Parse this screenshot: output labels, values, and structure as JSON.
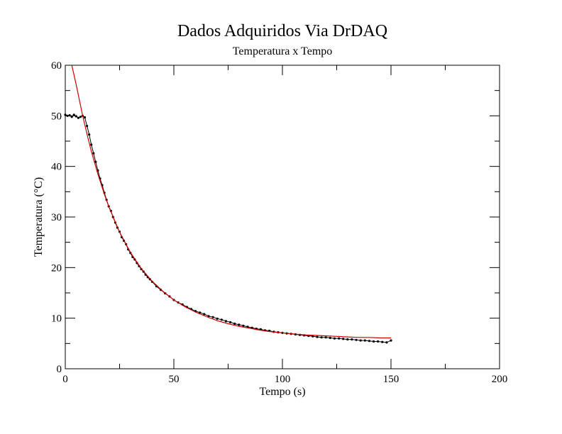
{
  "chart_data": {
    "type": "scatter",
    "title": "Dados Adquiridos Via DrDAQ",
    "subtitle": "Temperatura x Tempo",
    "xlabel": "Tempo (s)",
    "ylabel": "Temperatura (°C)",
    "xlim": [
      0,
      200
    ],
    "ylim": [
      0,
      60
    ],
    "x_ticks": [
      0,
      50,
      100,
      150,
      200
    ],
    "y_ticks": [
      0,
      10,
      20,
      30,
      40,
      50,
      60
    ],
    "x_tick_labels": [
      "0",
      "50",
      "100",
      "150",
      "200"
    ],
    "y_tick_labels": [
      "0",
      "10",
      "20",
      "30",
      "40",
      "50",
      "60"
    ],
    "grid": false,
    "legend": "none",
    "series": [
      {
        "kind": "measured",
        "color": "#000000",
        "marker": "dot-with-line",
        "x": [
          0,
          1,
          2,
          3,
          4,
          5,
          6,
          7,
          8,
          9,
          10,
          11,
          12,
          13,
          14,
          15,
          16,
          17,
          18,
          19,
          20,
          21,
          22,
          23,
          24,
          25,
          26,
          27,
          28,
          29,
          30,
          31,
          32,
          33,
          34,
          35,
          36,
          37,
          38,
          39,
          40,
          42,
          44,
          46,
          48,
          50,
          52,
          54,
          56,
          58,
          60,
          62,
          64,
          66,
          68,
          70,
          72,
          74,
          76,
          78,
          80,
          82,
          84,
          86,
          88,
          90,
          92,
          94,
          96,
          98,
          100,
          102,
          104,
          106,
          108,
          110,
          112,
          114,
          116,
          118,
          120,
          122,
          124,
          126,
          128,
          130,
          132,
          134,
          136,
          138,
          140,
          142,
          144,
          146,
          148,
          150
        ],
        "y": [
          50.2,
          50.0,
          50.1,
          49.8,
          50.2,
          49.9,
          49.6,
          49.8,
          50.0,
          49.7,
          48.0,
          46.3,
          44.3,
          42.6,
          40.9,
          39.2,
          37.6,
          36.3,
          34.8,
          33.4,
          32.1,
          31.2,
          30.0,
          28.9,
          27.9,
          27.1,
          26.0,
          25.3,
          24.6,
          23.6,
          22.9,
          22.1,
          21.6,
          20.9,
          20.3,
          19.7,
          19.2,
          18.6,
          18.1,
          17.7,
          17.2,
          16.3,
          15.6,
          14.9,
          14.3,
          13.6,
          13.1,
          12.7,
          12.2,
          11.8,
          11.4,
          11.1,
          10.8,
          10.4,
          10.2,
          9.9,
          9.7,
          9.4,
          9.2,
          8.9,
          8.7,
          8.5,
          8.3,
          8.1,
          7.9,
          7.8,
          7.6,
          7.5,
          7.3,
          7.2,
          7.1,
          7.0,
          6.9,
          6.8,
          6.7,
          6.6,
          6.5,
          6.4,
          6.3,
          6.2,
          6.2,
          6.1,
          6.0,
          6.0,
          5.9,
          5.8,
          5.8,
          5.7,
          5.6,
          5.6,
          5.5,
          5.4,
          5.4,
          5.3,
          5.2,
          5.6
        ]
      },
      {
        "kind": "fit",
        "color": "#cc0000",
        "model": "exponential decay",
        "x": [
          3,
          5,
          8,
          10,
          12,
          15,
          18,
          20,
          25,
          30,
          35,
          40,
          45,
          50,
          55,
          60,
          65,
          70,
          75,
          80,
          85,
          90,
          95,
          100,
          105,
          110,
          115,
          120,
          125,
          130,
          135,
          140,
          145,
          150
        ],
        "y": [
          60.0,
          56.2,
          50.0,
          46.4,
          43.0,
          38.5,
          34.5,
          32.1,
          27.0,
          23.0,
          19.8,
          17.3,
          15.3,
          13.6,
          12.3,
          11.2,
          10.3,
          9.5,
          8.9,
          8.4,
          8.0,
          7.6,
          7.3,
          7.1,
          6.9,
          6.7,
          6.6,
          6.5,
          6.4,
          6.3,
          6.2,
          6.2,
          6.1,
          6.1
        ]
      }
    ]
  }
}
